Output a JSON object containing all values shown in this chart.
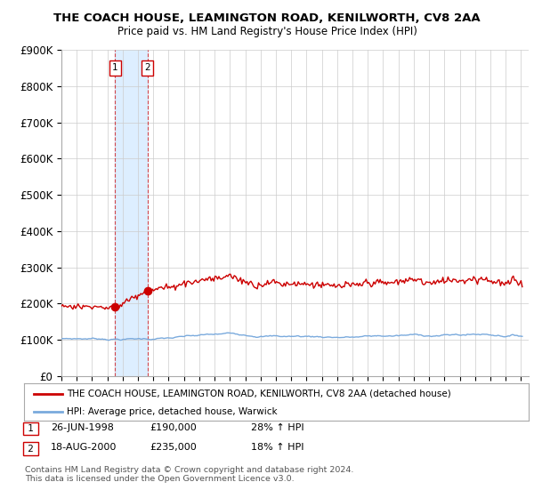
{
  "title": "THE COACH HOUSE, LEAMINGTON ROAD, KENILWORTH, CV8 2AA",
  "subtitle": "Price paid vs. HM Land Registry's House Price Index (HPI)",
  "ylim": [
    0,
    900000
  ],
  "yticks": [
    0,
    100000,
    200000,
    300000,
    400000,
    500000,
    600000,
    700000,
    800000,
    900000
  ],
  "ytick_labels": [
    "£0",
    "£100K",
    "£200K",
    "£300K",
    "£400K",
    "£500K",
    "£600K",
    "£700K",
    "£800K",
    "£900K"
  ],
  "line1_color": "#cc0000",
  "line2_color": "#7aaadd",
  "shade_color": "#ddeeff",
  "sale1_date": 1998.49,
  "sale1_price": 190000,
  "sale1_label": "1",
  "sale2_date": 2000.63,
  "sale2_price": 235000,
  "sale2_label": "2",
  "sale1_row": "26-JUN-1998",
  "sale1_price_str": "£190,000",
  "sale1_pct": "28% ↑ HPI",
  "sale2_row": "18-AUG-2000",
  "sale2_price_str": "£235,000",
  "sale2_pct": "18% ↑ HPI",
  "legend_line1": "THE COACH HOUSE, LEAMINGTON ROAD, KENILWORTH, CV8 2AA (detached house)",
  "legend_line2": "HPI: Average price, detached house, Warwick",
  "footer": "Contains HM Land Registry data © Crown copyright and database right 2024.\nThis data is licensed under the Open Government Licence v3.0.",
  "bg_color": "#ffffff",
  "grid_color": "#cccccc"
}
